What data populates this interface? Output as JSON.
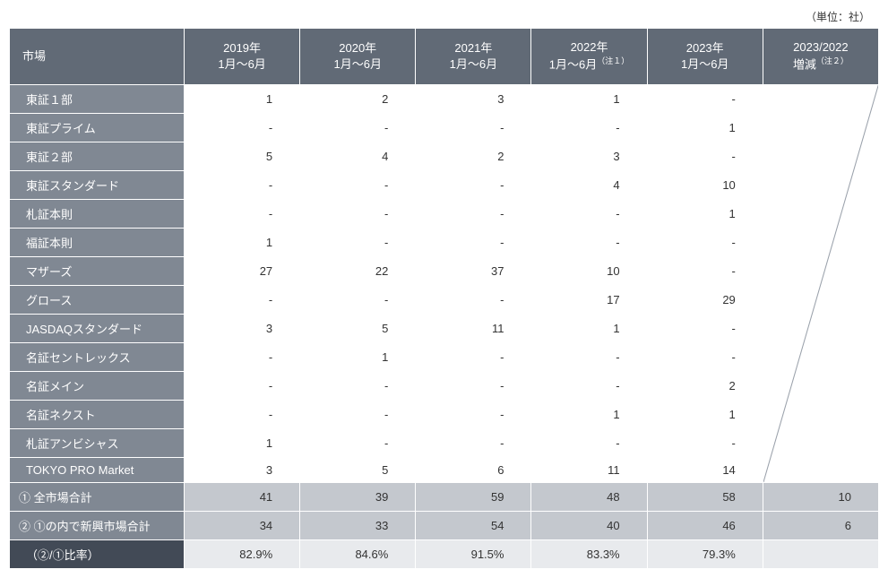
{
  "unit_label": "（単位：社）",
  "header": {
    "market": "市場",
    "cols": [
      "2019年\n1月～6月",
      "2020年\n1月～6月",
      "2021年\n1月～6月",
      "2022年\n1月～6月",
      "2023年\n1月～6月",
      "2023/2022\n増減"
    ],
    "note1": "（注１）",
    "note2": "（注２）"
  },
  "rows": [
    {
      "label": "東証１部",
      "vals": [
        "1",
        "2",
        "3",
        "1",
        "-"
      ]
    },
    {
      "label": "東証プライム",
      "vals": [
        "-",
        "-",
        "-",
        "-",
        "1"
      ]
    },
    {
      "label": "東証２部",
      "vals": [
        "5",
        "4",
        "2",
        "3",
        "-"
      ]
    },
    {
      "label": "東証スタンダード",
      "vals": [
        "-",
        "-",
        "-",
        "4",
        "10"
      ]
    },
    {
      "label": "札証本則",
      "vals": [
        "-",
        "-",
        "-",
        "-",
        "1"
      ]
    },
    {
      "label": "福証本則",
      "vals": [
        "1",
        "-",
        "-",
        "-",
        "-"
      ]
    },
    {
      "label": "マザーズ",
      "vals": [
        "27",
        "22",
        "37",
        "10",
        "-"
      ]
    },
    {
      "label": "グロース",
      "vals": [
        "-",
        "-",
        "-",
        "17",
        "29"
      ]
    },
    {
      "label": "JASDAQスタンダード",
      "vals": [
        "3",
        "5",
        "11",
        "1",
        "-"
      ]
    },
    {
      "label": "名証セントレックス",
      "vals": [
        "-",
        "1",
        "-",
        "-",
        "-"
      ]
    },
    {
      "label": "名証メイン",
      "vals": [
        "-",
        "-",
        "-",
        "-",
        "2"
      ]
    },
    {
      "label": "名証ネクスト",
      "vals": [
        "-",
        "-",
        "-",
        "1",
        "1"
      ]
    },
    {
      "label": "札証アンビシャス",
      "vals": [
        "1",
        "-",
        "-",
        "-",
        "-"
      ]
    },
    {
      "label": "TOKYO PRO Market",
      "vals": [
        "3",
        "5",
        "6",
        "11",
        "14"
      ]
    }
  ],
  "totals": [
    {
      "label": "① 全市場合計",
      "vals": [
        "41",
        "39",
        "59",
        "48",
        "58"
      ],
      "diff": "10"
    },
    {
      "label": "② ①の内で新興市場合計",
      "vals": [
        "34",
        "33",
        "54",
        "40",
        "46"
      ],
      "diff": "6"
    }
  ],
  "ratio": {
    "label": "（②/①比率）",
    "vals": [
      "82.9%",
      "84.6%",
      "91.5%",
      "83.3%",
      "79.3%"
    ],
    "diff": ""
  },
  "style": {
    "header_bg": "#616a76",
    "rowlabel_bg": "#808893",
    "total_val_bg": "#c4c8ce",
    "ratio_label_bg": "#424a56",
    "ratio_val_bg": "#e8eaed",
    "text_light": "#ffffff",
    "text_dark": "#333333",
    "diag_stroke": "#9aa1ab"
  }
}
